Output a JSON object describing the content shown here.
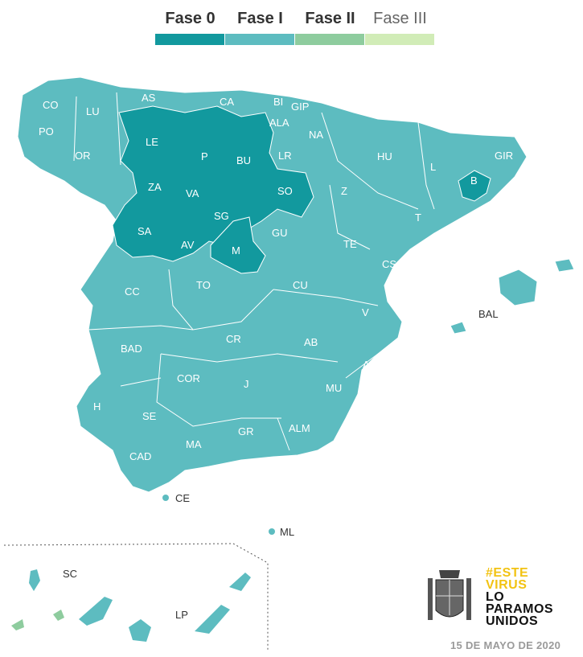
{
  "legend": {
    "items": [
      {
        "label": "Fase 0",
        "color": "#12999e"
      },
      {
        "label": "Fase I",
        "color": "#5dbcc0"
      },
      {
        "label": "Fase II",
        "color": "#8ecc9e"
      },
      {
        "label": "Fase III",
        "color": "#d1ecb7"
      }
    ]
  },
  "regions": {
    "CO": "CO",
    "LU": "LU",
    "PO": "PO",
    "OR": "OR",
    "AS": "AS",
    "CA": "CA",
    "BI": "BI",
    "GIP": "GIP",
    "ALA": "ALA",
    "NA": "NA",
    "LE": "LE",
    "P": "P",
    "BU": "BU",
    "LR": "LR",
    "HU": "HU",
    "L": "L",
    "GIR": "GIR",
    "B": "B",
    "ZA": "ZA",
    "VA": "VA",
    "SO": "SO",
    "Z": "Z",
    "T": "T",
    "SA": "SA",
    "SG": "SG",
    "AV": "AV",
    "M": "M",
    "GU": "GU",
    "TE": "TE",
    "CS": "CS",
    "BAL": "BAL",
    "CC": "CC",
    "TO": "TO",
    "CU": "CU",
    "V": "V",
    "BAD": "BAD",
    "CR": "CR",
    "AB": "AB",
    "A": "A",
    "COR": "COR",
    "J": "J",
    "MU": "MU",
    "H": "H",
    "SE": "SE",
    "GR": "GR",
    "ALM": "ALM",
    "MA": "MA",
    "CAD": "CAD",
    "CE": "CE",
    "ML": "ML",
    "SC": "SC",
    "LP": "LP"
  },
  "branding": {
    "line1": "#ESTE",
    "line2": "VIRUS",
    "line3": "LO",
    "line4": "PARAMOS",
    "line5": "UNIDOS",
    "hashtag_color": "#f2c313",
    "emblem": "coat-of-arms-of-spain"
  },
  "date": "15 DE MAYO DE 2020"
}
